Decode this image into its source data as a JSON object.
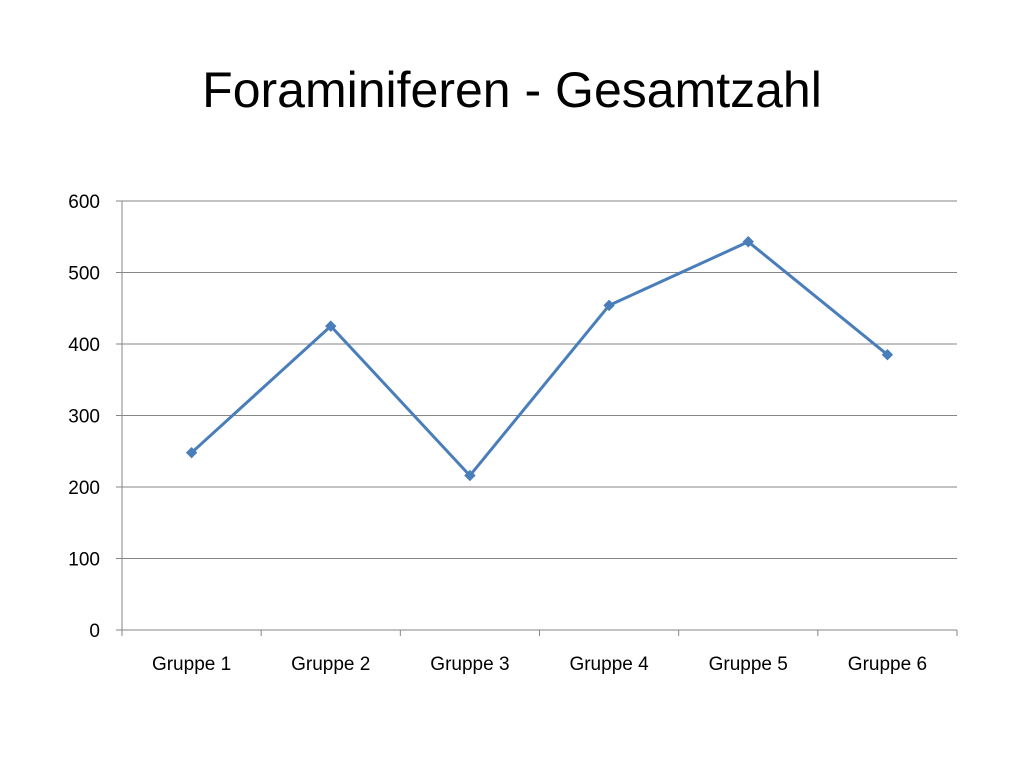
{
  "chart_data": {
    "type": "line",
    "title": "Foraminiferen - Gesamtzahl",
    "categories": [
      "Gruppe 1",
      "Gruppe 2",
      "Gruppe 3",
      "Gruppe 4",
      "Gruppe 5",
      "Gruppe 6"
    ],
    "series": [
      {
        "values": [
          248,
          425,
          216,
          454,
          543,
          385
        ],
        "color": "#4a7ebb",
        "marker": "diamond"
      }
    ],
    "y_ticks": [
      "0",
      "100",
      "200",
      "300",
      "400",
      "500",
      "600"
    ],
    "ylim": [
      0,
      600
    ],
    "y_step": 100,
    "grid": true,
    "legend": "none",
    "gridline_color": "#868686",
    "axis_color": "#868686"
  }
}
